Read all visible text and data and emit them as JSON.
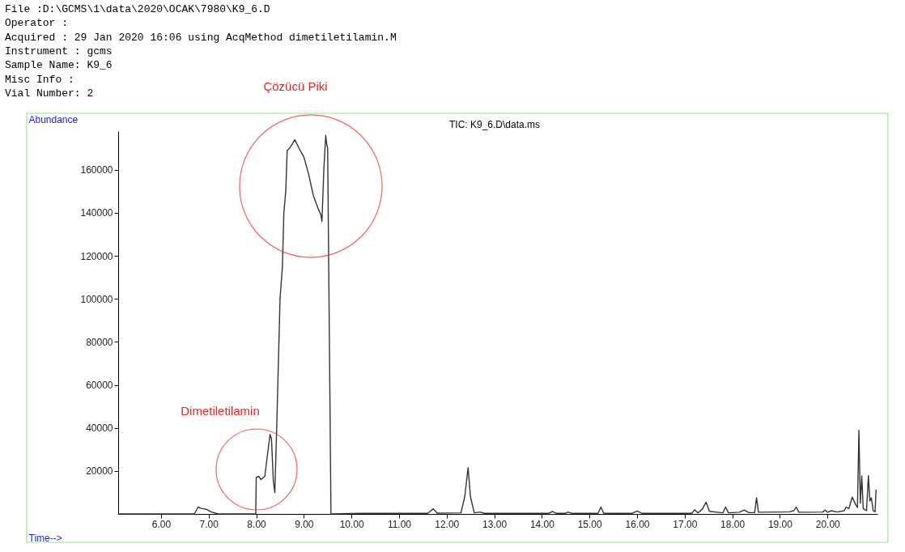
{
  "chart_data": {
    "type": "line",
    "title": "TIC: K9_6.D\\data.ms",
    "xlabel": "Time-->",
    "ylabel": "Abundance",
    "annotations": [
      "File       :D:\\GCMS\\1\\data\\2020\\OCAK\\7980\\K9_6.D",
      "Operator   :",
      "Acquired   : 29 Jan 2020  16:06     using AcqMethod dimetiletilamin.M",
      "Instrument :    gcms",
      "Sample Name: K9_6",
      "Misc Info  :",
      "Vial Number: 2",
      "Çözücü Piki",
      "Dimetiletilamin"
    ],
    "series": [
      {
        "color": "#333333",
        "x": [
          5.1,
          6.7,
          6.78,
          6.85,
          6.95,
          7.05,
          7.2,
          7.99,
          8.0,
          8.05,
          8.1,
          8.18,
          8.25,
          8.29,
          8.32,
          8.36,
          8.39,
          8.43,
          8.5,
          8.55,
          8.58,
          8.62,
          8.65,
          8.7,
          8.81,
          8.9,
          9.0,
          9.1,
          9.2,
          9.3,
          9.36,
          9.38,
          9.42,
          9.46,
          9.48,
          9.5,
          9.57,
          10.2,
          11.0,
          11.6,
          11.72,
          11.8,
          12.3,
          12.38,
          12.45,
          12.5,
          12.58,
          12.7,
          12.8,
          14.15,
          14.22,
          14.3,
          14.5,
          14.55,
          14.62,
          15.18,
          15.24,
          15.3,
          15.9,
          16.0,
          16.1,
          17.15,
          17.21,
          17.28,
          17.38,
          17.45,
          17.52,
          17.8,
          17.86,
          17.92,
          18.15,
          18.25,
          18.35,
          18.47,
          18.51,
          18.55,
          19.2,
          19.3,
          19.34,
          19.4,
          19.9,
          19.95,
          20.0,
          20.08,
          20.2,
          20.35,
          20.39,
          20.45,
          20.52,
          20.6,
          20.63,
          20.66,
          20.69,
          20.72,
          20.75,
          20.82,
          20.86,
          20.89,
          20.92,
          20.96,
          21.0,
          21.02
        ],
        "values": [
          0,
          0,
          3200,
          2600,
          2200,
          1000,
          0,
          0,
          17000,
          17500,
          16000,
          17500,
          30000,
          37000,
          35000,
          15000,
          10000,
          40000,
          100000,
          115000,
          140000,
          150000,
          169000,
          170000,
          174000,
          170000,
          166000,
          158000,
          148000,
          142000,
          139000,
          136000,
          160000,
          176000,
          172000,
          170000,
          0,
          300,
          300,
          300,
          2400,
          400,
          500,
          8000,
          21500,
          8000,
          500,
          900,
          300,
          300,
          1200,
          300,
          300,
          900,
          300,
          300,
          3200,
          300,
          300,
          1400,
          300,
          300,
          2000,
          500,
          2500,
          5500,
          1200,
          500,
          3200,
          500,
          800,
          1800,
          600,
          600,
          7500,
          800,
          1000,
          1600,
          3200,
          800,
          900,
          1800,
          800,
          1500,
          900,
          1500,
          3200,
          2500,
          7800,
          4000,
          3000,
          38900,
          5000,
          17700,
          2500,
          1500,
          17800,
          6000,
          7500,
          1500,
          1000,
          11300
        ]
      }
    ],
    "xlim": [
      5.1,
      21.05
    ],
    "xticks": [
      {
        "value": 6,
        "label": "6.00"
      },
      {
        "value": 7,
        "label": "7.00"
      },
      {
        "value": 8,
        "label": "8.00"
      },
      {
        "value": 9,
        "label": "9.00"
      },
      {
        "value": 10,
        "label": "10.00"
      },
      {
        "value": 11,
        "label": "11.00"
      },
      {
        "value": 12,
        "label": "12.00"
      },
      {
        "value": 13,
        "label": "13.00"
      },
      {
        "value": 14,
        "label": "14.00"
      },
      {
        "value": 15,
        "label": "15.00"
      },
      {
        "value": 16,
        "label": "16.00"
      },
      {
        "value": 17,
        "label": "17.00"
      },
      {
        "value": 18,
        "label": "18.00"
      },
      {
        "value": 19,
        "label": "19.00"
      },
      {
        "value": 20,
        "label": "20.00"
      }
    ],
    "ylim": [
      0,
      178000
    ],
    "yticks": [
      20000,
      40000,
      60000,
      80000,
      100000,
      120000,
      140000,
      160000
    ],
    "grid": false,
    "marker": "none",
    "line_style": "solid"
  }
}
